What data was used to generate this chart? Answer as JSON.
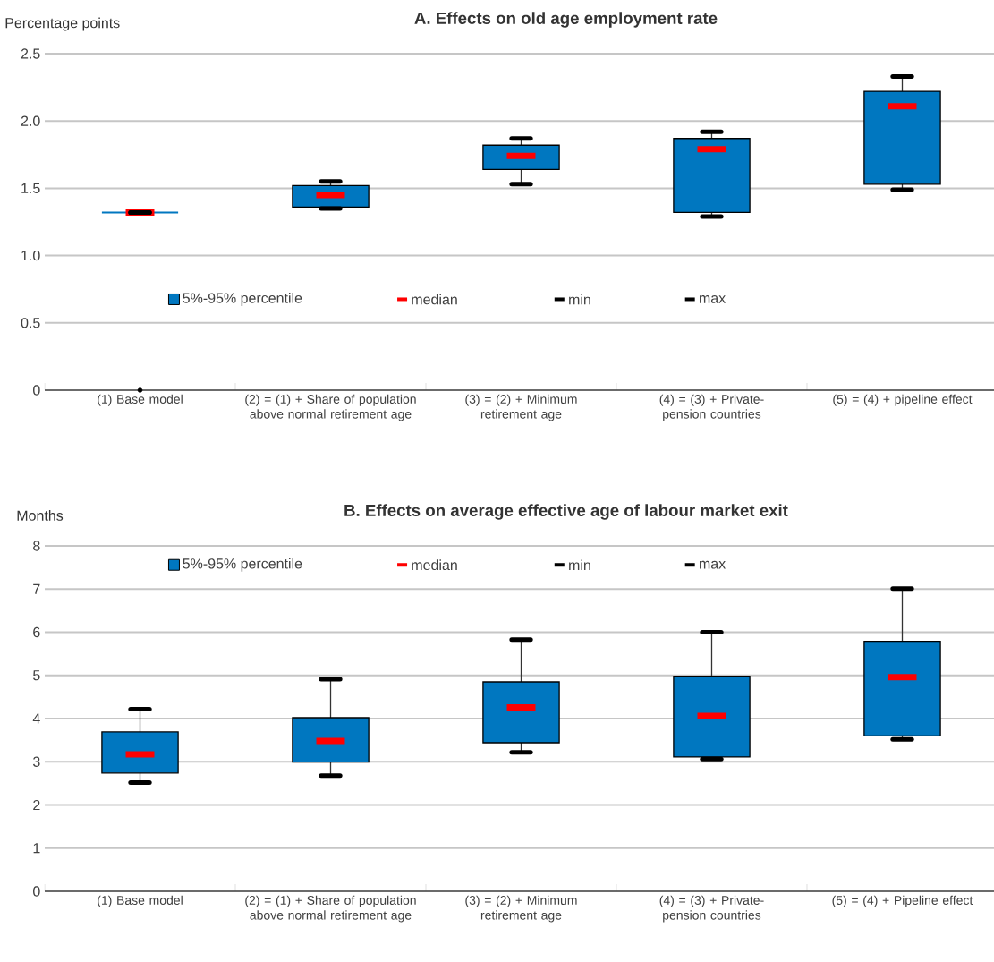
{
  "chart_data": [
    {
      "type": "box",
      "title": "A. Effects on old age employment rate",
      "ylabel": "Percentage points",
      "categories": [
        "(1) Base model",
        "(2) = (1) + Share of population above normal retirement age",
        "(3) = (2) + Minimum retirement age",
        "(4) = (3) + Private-pension countries",
        "(5) = (4) + pipeline effect"
      ],
      "series": [
        {
          "name": "5%-95% percentile",
          "color": "#0077c0",
          "boxes": [
            {
              "low": 1.32,
              "q1": 1.32,
              "median": 1.32,
              "q3": 1.32,
              "high": 1.32,
              "outliers": [
                0
              ]
            },
            {
              "low": 1.35,
              "q1": 1.36,
              "median": 1.45,
              "q3": 1.52,
              "high": 1.55
            },
            {
              "low": 1.53,
              "q1": 1.64,
              "median": 1.74,
              "q3": 1.82,
              "high": 1.87
            },
            {
              "low": 1.29,
              "q1": 1.32,
              "median": 1.79,
              "q3": 1.87,
              "high": 1.92
            },
            {
              "low": 1.49,
              "q1": 1.53,
              "median": 2.11,
              "q3": 2.22,
              "high": 2.33
            }
          ]
        }
      ],
      "annotations": [
        "median",
        "min",
        "max"
      ],
      "ylim": [
        0,
        2.5
      ],
      "yticks": [
        0,
        0.5,
        {
          "value": 1,
          "label": "1.0"
        },
        1.5,
        {
          "value": 2,
          "label": "2.0"
        },
        2.5
      ],
      "grid": "y",
      "legend": "center"
    },
    {
      "type": "box",
      "title": "B. Effects on average effective age of labour market exit",
      "ylabel": "Months",
      "categories": [
        "(1) Base model",
        "(2) = (1) + Share of population above normal retirement age",
        "(3) = (2) + Minimum retirement age",
        "(4) = (3) + Private-pension countries",
        "(5) = (4) + Pipeline effect"
      ],
      "series": [
        {
          "name": "5%-95% percentile",
          "color": "#0077c0",
          "boxes": [
            {
              "low": 2.52,
              "q1": 2.74,
              "median": 3.17,
              "q3": 3.69,
              "high": 4.22
            },
            {
              "low": 2.68,
              "q1": 2.99,
              "median": 3.48,
              "q3": 4.02,
              "high": 4.91
            },
            {
              "low": 3.22,
              "q1": 3.44,
              "median": 4.26,
              "q3": 4.85,
              "high": 5.83
            },
            {
              "low": 3.06,
              "q1": 3.11,
              "median": 4.06,
              "q3": 4.98,
              "high": 6.0
            },
            {
              "low": 3.52,
              "q1": 3.6,
              "median": 4.96,
              "q3": 5.79,
              "high": 7.01
            }
          ]
        }
      ],
      "annotations": [
        "median",
        "min",
        "max"
      ],
      "ylim": [
        0,
        8
      ],
      "yticks": [
        0,
        1,
        2,
        3,
        4,
        5,
        6,
        7,
        8
      ],
      "grid": "y",
      "legend": "top"
    }
  ]
}
